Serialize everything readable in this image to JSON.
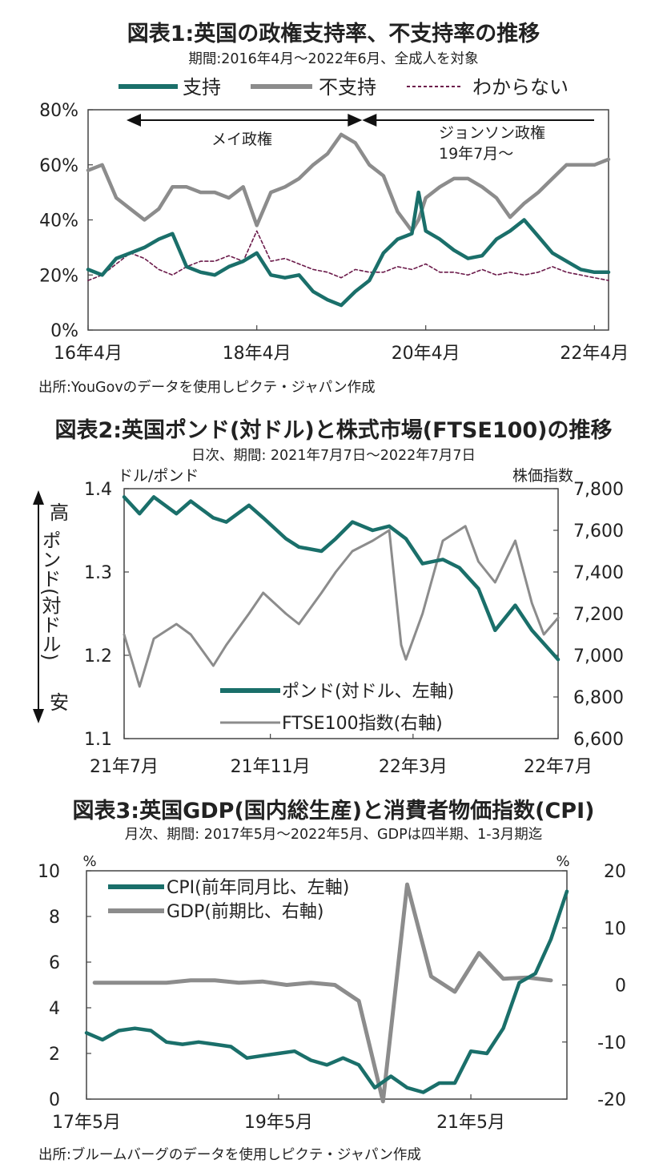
{
  "chart1": {
    "title": "図表1:英国の政権支持率、不支持率の推移",
    "subtitle": "期間:2016年4月～2022年6月、全成人を対象",
    "source": "出所:YouGovのデータを使用しピクテ・ジャパン作成",
    "annotations": {
      "may": "メイ政権",
      "johnson_1": "ジョンソン政権",
      "johnson_2": "19年7月～"
    },
    "colors": {
      "support": "#1a6f6a",
      "oppose": "#8c8c8c",
      "unknown": "#6b1a4a"
    },
    "chart_data": {
      "type": "line",
      "title": "図表1:英国の政権支持率、不支持率の推移",
      "y_tick_labels": [
        "0%",
        "20%",
        "40%",
        "60%",
        "80%"
      ],
      "x_tick_labels": [
        "16年4月",
        "18年4月",
        "20年4月",
        "22年4月"
      ],
      "ylim": [
        0,
        80
      ],
      "y_unit": "%",
      "x_start": "2016-04",
      "x_end": "2022-06",
      "grid": false,
      "legend": "top",
      "series": [
        {
          "name": "支持",
          "x": [
            "2016-04",
            "2016-06",
            "2016-08",
            "2016-10",
            "2016-12",
            "2017-02",
            "2017-04",
            "2017-06",
            "2017-08",
            "2017-10",
            "2017-12",
            "2018-02",
            "2018-04",
            "2018-06",
            "2018-08",
            "2018-10",
            "2018-12",
            "2019-02",
            "2019-04",
            "2019-06",
            "2019-08",
            "2019-10",
            "2019-12",
            "2020-02",
            "2020-03",
            "2020-04",
            "2020-06",
            "2020-08",
            "2020-10",
            "2020-12",
            "2021-02",
            "2021-04",
            "2021-06",
            "2021-08",
            "2021-10",
            "2021-12",
            "2022-02",
            "2022-04",
            "2022-06"
          ],
          "values": [
            22,
            20,
            26,
            28,
            30,
            33,
            35,
            23,
            21,
            20,
            23,
            25,
            28,
            20,
            19,
            20,
            14,
            11,
            9,
            14,
            18,
            28,
            33,
            35,
            50,
            36,
            33,
            29,
            26,
            27,
            33,
            36,
            40,
            34,
            28,
            25,
            22,
            21,
            21
          ]
        },
        {
          "name": "不支持",
          "x": [
            "2016-04",
            "2016-06",
            "2016-08",
            "2016-10",
            "2016-12",
            "2017-02",
            "2017-04",
            "2017-06",
            "2017-08",
            "2017-10",
            "2017-12",
            "2018-02",
            "2018-04",
            "2018-06",
            "2018-08",
            "2018-10",
            "2018-12",
            "2019-02",
            "2019-04",
            "2019-06",
            "2019-08",
            "2019-10",
            "2019-12",
            "2020-02",
            "2020-03",
            "2020-04",
            "2020-06",
            "2020-08",
            "2020-10",
            "2020-12",
            "2021-02",
            "2021-04",
            "2021-06",
            "2021-08",
            "2021-10",
            "2021-12",
            "2022-02",
            "2022-04",
            "2022-06"
          ],
          "values": [
            58,
            60,
            48,
            44,
            40,
            44,
            52,
            52,
            50,
            50,
            48,
            52,
            38,
            50,
            52,
            55,
            60,
            64,
            71,
            68,
            60,
            56,
            43,
            36,
            40,
            48,
            52,
            55,
            55,
            52,
            48,
            41,
            46,
            50,
            55,
            60,
            60,
            60,
            62
          ]
        },
        {
          "name": "わからない",
          "x": [
            "2016-04",
            "2016-06",
            "2016-08",
            "2016-10",
            "2016-12",
            "2017-02",
            "2017-04",
            "2017-06",
            "2017-08",
            "2017-10",
            "2017-12",
            "2018-02",
            "2018-04",
            "2018-06",
            "2018-08",
            "2018-10",
            "2018-12",
            "2019-02",
            "2019-04",
            "2019-06",
            "2019-08",
            "2019-10",
            "2019-12",
            "2020-02",
            "2020-04",
            "2020-06",
            "2020-08",
            "2020-10",
            "2020-12",
            "2021-02",
            "2021-04",
            "2021-06",
            "2021-08",
            "2021-10",
            "2021-12",
            "2022-02",
            "2022-04",
            "2022-06"
          ],
          "values": [
            18,
            20,
            24,
            28,
            26,
            22,
            20,
            23,
            25,
            25,
            27,
            25,
            36,
            25,
            26,
            24,
            22,
            21,
            19,
            22,
            21,
            21,
            23,
            22,
            24,
            21,
            21,
            20,
            22,
            20,
            21,
            20,
            21,
            23,
            21,
            20,
            19,
            18
          ]
        }
      ]
    }
  },
  "chart2": {
    "title": "図表2:英国ポンド(対ドル)と株式市場(FTSE100)の推移",
    "subtitle": "日次、期間: 2021年7月7日～2022年7月7日",
    "left_unit": "ドル/ポンド",
    "right_unit": "株価指数",
    "side_label": {
      "high": "高",
      "middle": "ポンド(対ドル)",
      "low": "安"
    },
    "colors": {
      "gbp": "#1a6f6a",
      "ftse": "#8c8c8c"
    },
    "chart_data": {
      "type": "line",
      "title": "図表2:英国ポンド(対ドル)と株式市場(FTSE100)の推移",
      "ylabel": "ドル/ポンド",
      "ylabel_right": "株価指数",
      "y_tick_labels": [
        "1.1",
        "1.2",
        "1.3",
        "1.4"
      ],
      "y_right_tick_labels": [
        "6,600",
        "6,800",
        "7,000",
        "7,200",
        "7,400",
        "7,600",
        "7,800"
      ],
      "x_tick_labels": [
        "21年7月",
        "21年11月",
        "22年3月",
        "22年7月"
      ],
      "ylim": [
        1.1,
        1.4
      ],
      "ylim_right": [
        6600,
        7800
      ],
      "x_start": "2021-07-07",
      "x_end": "2022-07-07",
      "grid": false,
      "legend": "bottom-center",
      "series": [
        {
          "name": "ポンド(対ドル、左軸)",
          "axis": "left",
          "x": [
            "2021-07-07",
            "2021-07-20",
            "2021-08-01",
            "2021-08-20",
            "2021-09-01",
            "2021-09-20",
            "2021-10-01",
            "2021-10-20",
            "2021-11-01",
            "2021-11-20",
            "2021-12-01",
            "2021-12-20",
            "2022-01-01",
            "2022-01-15",
            "2022-02-01",
            "2022-02-15",
            "2022-03-01",
            "2022-03-15",
            "2022-04-01",
            "2022-04-15",
            "2022-05-01",
            "2022-05-15",
            "2022-06-01",
            "2022-06-15",
            "2022-07-07"
          ],
          "values": [
            1.39,
            1.37,
            1.39,
            1.37,
            1.385,
            1.365,
            1.36,
            1.38,
            1.365,
            1.34,
            1.33,
            1.325,
            1.34,
            1.36,
            1.35,
            1.355,
            1.34,
            1.31,
            1.315,
            1.305,
            1.28,
            1.23,
            1.26,
            1.23,
            1.195
          ]
        },
        {
          "name": "FTSE100指数(右軸)",
          "axis": "right",
          "x": [
            "2021-07-07",
            "2021-07-20",
            "2021-08-01",
            "2021-08-20",
            "2021-09-01",
            "2021-09-20",
            "2021-10-01",
            "2021-10-20",
            "2021-11-01",
            "2021-11-20",
            "2021-12-01",
            "2021-12-20",
            "2022-01-01",
            "2022-01-15",
            "2022-02-01",
            "2022-02-15",
            "2022-02-25",
            "2022-03-01",
            "2022-03-15",
            "2022-04-01",
            "2022-04-20",
            "2022-05-01",
            "2022-05-15",
            "2022-06-01",
            "2022-06-15",
            "2022-06-25",
            "2022-07-07"
          ],
          "values": [
            7100,
            6850,
            7080,
            7150,
            7100,
            6950,
            7050,
            7200,
            7300,
            7200,
            7150,
            7300,
            7400,
            7500,
            7550,
            7600,
            7050,
            6980,
            7200,
            7550,
            7620,
            7450,
            7350,
            7550,
            7250,
            7100,
            7180
          ]
        }
      ]
    }
  },
  "chart3": {
    "title": "図表3:英国GDP(国内総生産)と消費者物価指数(CPI)",
    "subtitle": "月次、期間: 2017年5月～2022年5月、GDPは四半期、1-3月期迄",
    "source": "出所:ブルームバーグのデータを使用しピクテ・ジャパン作成",
    "left_unit": "%",
    "right_unit": "%",
    "colors": {
      "cpi": "#1a6f6a",
      "gdp": "#8c8c8c"
    },
    "chart_data": {
      "type": "line",
      "title": "図表3:英国GDP(国内総生産)と消費者物価指数(CPI)",
      "ylabel": "%",
      "ylabel_right": "%",
      "y_tick_labels": [
        "0",
        "2",
        "4",
        "6",
        "8",
        "10"
      ],
      "y_right_tick_labels": [
        "-20",
        "-10",
        "0",
        "10",
        "20"
      ],
      "x_tick_labels": [
        "17年5月",
        "19年5月",
        "21年5月"
      ],
      "ylim": [
        0,
        10
      ],
      "ylim_right": [
        -20,
        20
      ],
      "x_start": "2017-05",
      "x_end": "2022-05",
      "grid": false,
      "legend": "top-left",
      "series": [
        {
          "name": "CPI(前年同月比、左軸)",
          "axis": "left",
          "x": [
            "2017-05",
            "2017-07",
            "2017-09",
            "2017-11",
            "2018-01",
            "2018-03",
            "2018-05",
            "2018-07",
            "2018-09",
            "2018-11",
            "2019-01",
            "2019-03",
            "2019-05",
            "2019-07",
            "2019-09",
            "2019-11",
            "2020-01",
            "2020-03",
            "2020-05",
            "2020-07",
            "2020-09",
            "2020-11",
            "2021-01",
            "2021-03",
            "2021-05",
            "2021-07",
            "2021-09",
            "2021-11",
            "2022-01",
            "2022-03",
            "2022-05"
          ],
          "values": [
            2.9,
            2.6,
            3.0,
            3.1,
            3.0,
            2.5,
            2.4,
            2.5,
            2.4,
            2.3,
            1.8,
            1.9,
            2.0,
            2.1,
            1.7,
            1.5,
            1.8,
            1.5,
            0.5,
            1.0,
            0.5,
            0.3,
            0.7,
            0.7,
            2.1,
            2.0,
            3.1,
            5.1,
            5.5,
            7.0,
            9.1
          ]
        },
        {
          "name": "GDP(前期比、右軸)",
          "axis": "right",
          "x": [
            "2017-06",
            "2017-09",
            "2017-12",
            "2018-03",
            "2018-06",
            "2018-09",
            "2018-12",
            "2019-03",
            "2019-06",
            "2019-09",
            "2019-12",
            "2020-03",
            "2020-06",
            "2020-09",
            "2020-12",
            "2021-03",
            "2021-06",
            "2021-09",
            "2021-12",
            "2022-03"
          ],
          "values": [
            0.4,
            0.4,
            0.4,
            0.4,
            0.8,
            0.8,
            0.4,
            0.6,
            0.0,
            0.4,
            0.0,
            -2.8,
            -20.4,
            17.6,
            1.5,
            -1.2,
            5.6,
            1.1,
            1.3,
            0.8
          ]
        }
      ]
    }
  }
}
